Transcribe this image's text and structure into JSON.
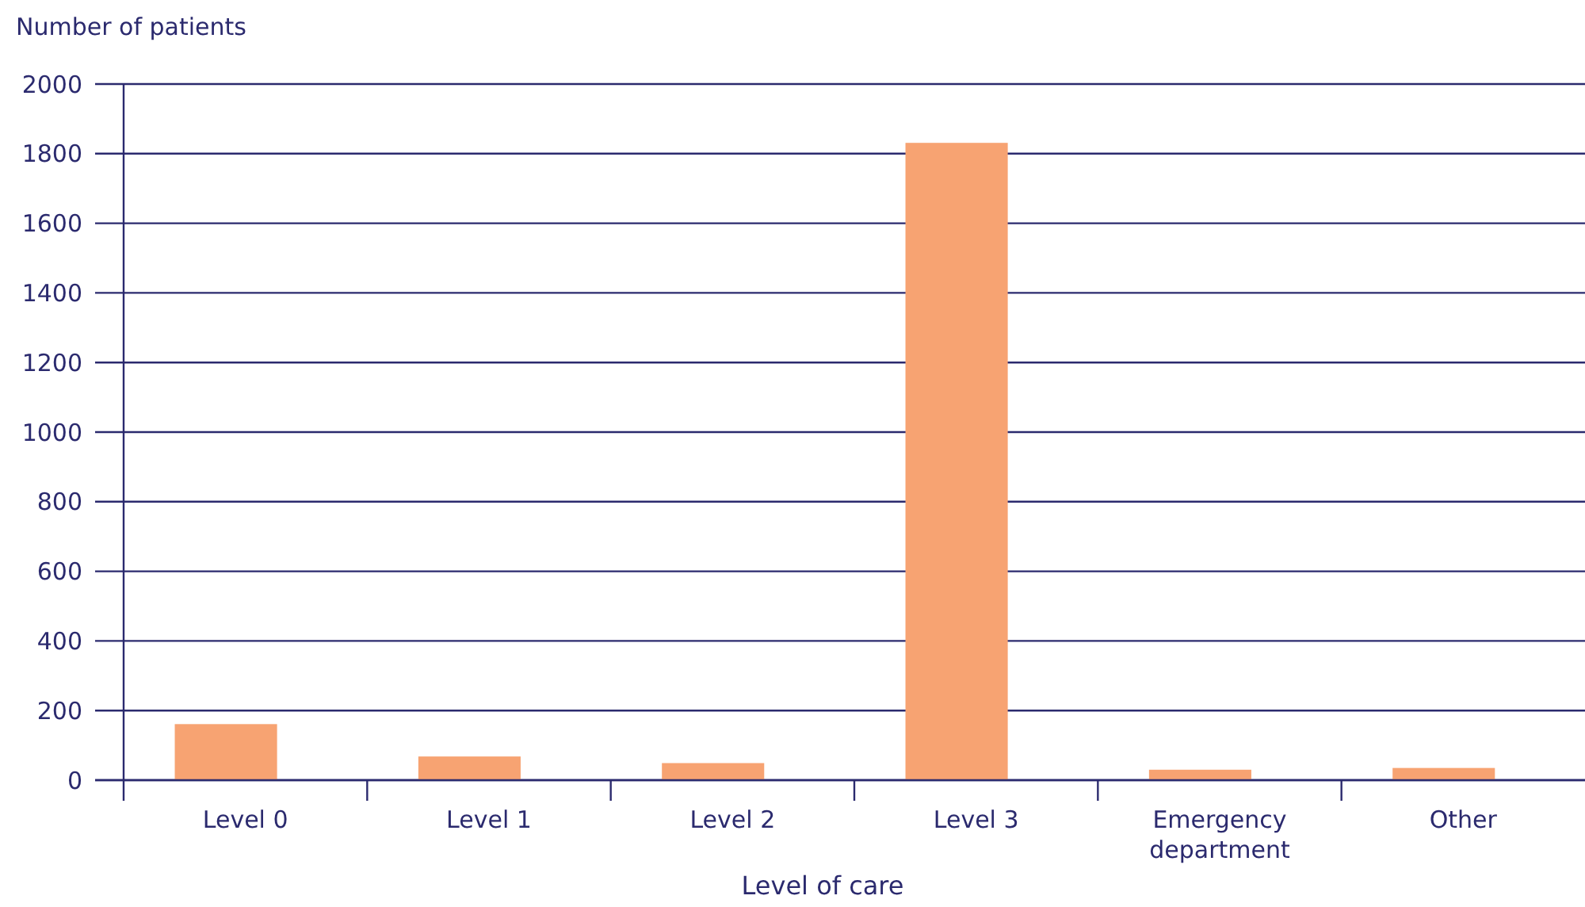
{
  "chart_data": {
    "type": "bar",
    "xlabel": "Level of care",
    "ylabel": "Number of patients",
    "categories": [
      "Level 0",
      "Level 1",
      "Level 2",
      "Level 3",
      "Emergency department",
      "Other"
    ],
    "values": [
      161,
      68,
      49,
      1831,
      30,
      35
    ],
    "color": "#f7a372",
    "ylim": [
      0,
      2000
    ],
    "yticks": [
      0,
      200,
      400,
      600,
      800,
      1000,
      1200,
      1400,
      1600,
      1800,
      2000
    ],
    "grid": "y"
  }
}
